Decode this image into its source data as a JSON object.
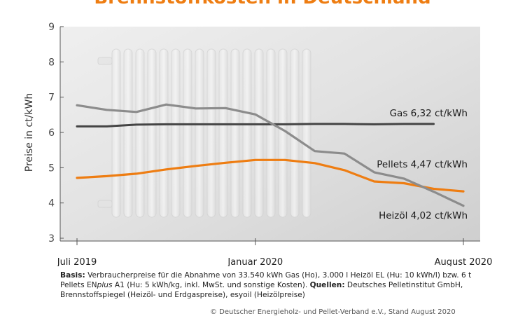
{
  "chart_data": {
    "type": "line",
    "title": "Brennstoffkosten in Deutschland",
    "ylabel": "Preise in ct/kWh",
    "xlabel": "",
    "ylim": [
      3,
      9
    ],
    "yticks": [
      "3",
      "4",
      "5",
      "6",
      "7",
      "8",
      "9"
    ],
    "x": [
      "Jul 2019",
      "Aug 2019",
      "Sep 2019",
      "Okt 2019",
      "Nov 2019",
      "Dez 2019",
      "Jan 2020",
      "Feb 2020",
      "Mär 2020",
      "Apr 2020",
      "Mai 2020",
      "Jun 2020",
      "Jul 2020",
      "Aug 2020"
    ],
    "xtick_labels": [
      {
        "index": 0,
        "label": "Juli 2019"
      },
      {
        "index": 6,
        "label": "Januar 2020"
      },
      {
        "index": 13,
        "label": "August 2020"
      }
    ],
    "grid": false,
    "series": [
      {
        "name": "Gas",
        "label": "Gas  6,32 ct/kWh",
        "color": "#444444",
        "values": [
          6.17,
          6.17,
          6.22,
          6.23,
          6.23,
          6.23,
          6.23,
          6.23,
          6.24,
          6.24,
          6.23,
          6.24,
          6.24,
          null
        ]
      },
      {
        "name": "Pellets",
        "label": "Pellets  4,47 ct/kWh",
        "color": "#ee7d12",
        "values": [
          4.71,
          4.76,
          4.83,
          4.95,
          5.05,
          5.14,
          5.22,
          5.22,
          5.13,
          4.93,
          4.61,
          4.56,
          4.4,
          4.33
        ]
      },
      {
        "name": "Heizöl",
        "label": "Heizöl  4,02 ct/kWh",
        "color": "#8c8c8c",
        "values": [
          6.77,
          6.64,
          6.58,
          6.79,
          6.68,
          6.69,
          6.51,
          6.04,
          5.47,
          5.4,
          4.87,
          4.69,
          4.32,
          3.92
        ]
      }
    ]
  },
  "footer": {
    "basis_label": "Basis:",
    "basis_text": " Verbraucherpreise für die Abnahme von 33.540 kWh Gas (Ho), 3.000 l Heizöl EL (Hu: 10 kWh/l) bzw. 6 t Pellets EN",
    "plus_text": "plus",
    "basis_text2": " A1 (Hu: 5 kWh/kg, inkl. MwSt. und sonstige Kosten). ",
    "sources_label": "Quellen:",
    "sources_text": " Deutsches Pelletinstitut GmbH, Brennstoffspiegel (Heizöl- und Erdgaspreise), esyoil (Heizölpreise)"
  },
  "copyright": "© Deutscher Energieholz- und Pellet-Verband e.V., Stand August 2020",
  "colors": {
    "title": "#ee7d12",
    "plot_bg": "#dcdcdc",
    "gas": "#444444",
    "pellets": "#ee7d12",
    "heizoel": "#8c8c8c"
  }
}
